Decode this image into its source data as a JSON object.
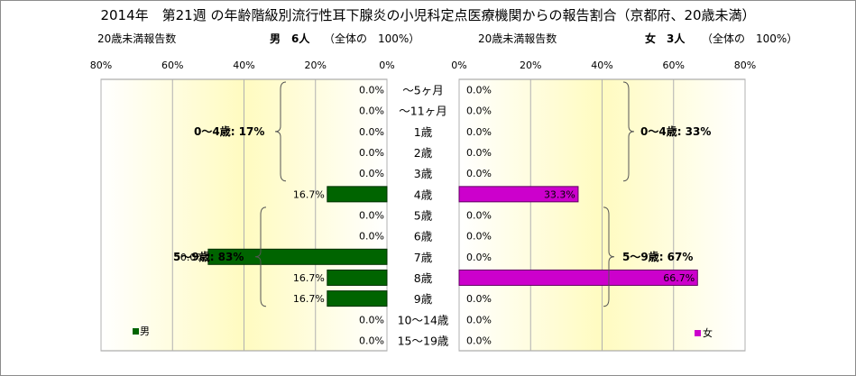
{
  "title": "2014年　第21週 の年齢階級別流行性耳下腺炎の小児科定点医療機関からの報告割合（京都府、20歳未満）",
  "header": {
    "left_label": "20歳未満報告数",
    "male_summary": "男　6人",
    "male_total": "（全体の　100%）",
    "right_label": "20歳未満報告数",
    "female_summary": "女　3人",
    "female_total": "（全体の　100%）"
  },
  "chart_data": [
    {
      "type": "bar",
      "orientation": "horizontal-reversed",
      "series": [
        {
          "name": "男",
          "values": [
            0.0,
            0.0,
            0.0,
            0.0,
            0.0,
            16.7,
            0.0,
            0.0,
            50.0,
            16.7,
            16.7,
            0.0,
            0.0
          ]
        }
      ],
      "value_labels": [
        "0.0%",
        "0.0%",
        "0.0%",
        "0.0%",
        "0.0%",
        "16.7%",
        "0.0%",
        "0.0%",
        "50.0%",
        "16.7%",
        "16.7%",
        "0.0%",
        "0.0%"
      ],
      "xticks": [
        "80%",
        "60%",
        "40%",
        "20%",
        "0%"
      ],
      "xlim": [
        0,
        80
      ],
      "legend": "男",
      "legend_position": "bottom-left",
      "color": "#006400",
      "group_labels": [
        "0〜4歳: 17%",
        "5〜9歳: 83%"
      ]
    },
    {
      "type": "bar",
      "orientation": "horizontal",
      "series": [
        {
          "name": "女",
          "values": [
            0.0,
            0.0,
            0.0,
            0.0,
            0.0,
            33.3,
            0.0,
            0.0,
            0.0,
            66.7,
            0.0,
            0.0,
            0.0
          ]
        }
      ],
      "value_labels": [
        "0.0%",
        "0.0%",
        "0.0%",
        "0.0%",
        "0.0%",
        "33.3%",
        "0.0%",
        "0.0%",
        "0.0%",
        "66.7%",
        "0.0%",
        "0.0%",
        "0.0%"
      ],
      "xticks": [
        "0%",
        "20%",
        "40%",
        "60%",
        "80%"
      ],
      "xlim": [
        0,
        80
      ],
      "legend": "女",
      "legend_position": "bottom-right",
      "color": "#cc00cc",
      "group_labels": [
        "0〜4歳: 33%",
        "5〜9歳: 67%"
      ]
    }
  ],
  "categories": [
    "〜5ヶ月",
    "〜11ヶ月",
    "1歳",
    "2歳",
    "3歳",
    "4歳",
    "5歳",
    "6歳",
    "7歳",
    "8歳",
    "9歳",
    "10〜14歳",
    "15〜19歳"
  ],
  "colors": {
    "grid": "#b0b0b0",
    "plot_bg_edge": "#ffffff",
    "plot_bg_center": "#fffbc0"
  }
}
